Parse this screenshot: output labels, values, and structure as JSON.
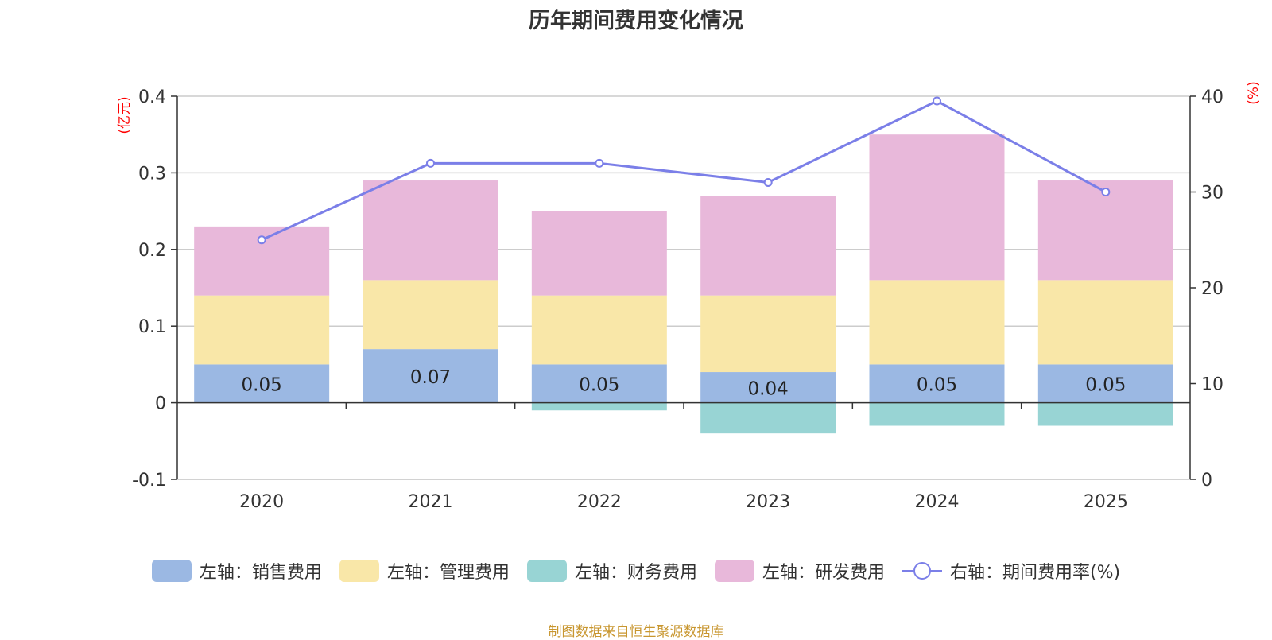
{
  "chart_data": {
    "type": "bar",
    "title": "历年期间费用变化情况",
    "categories": [
      "2020",
      "2021",
      "2022",
      "2023",
      "2024",
      "2025"
    ],
    "series": [
      {
        "name": "左轴：销售费用",
        "axis": "left",
        "color": "#9bb8e3",
        "values": [
          0.05,
          0.07,
          0.05,
          0.04,
          0.05,
          0.05
        ]
      },
      {
        "name": "左轴：管理费用",
        "axis": "left",
        "color": "#f9e7a8",
        "values": [
          0.09,
          0.09,
          0.09,
          0.1,
          0.11,
          0.11
        ]
      },
      {
        "name": "左轴：财务费用",
        "axis": "left",
        "color": "#98d4d4",
        "values": [
          0,
          0,
          -0.01,
          -0.04,
          -0.03,
          -0.03
        ]
      },
      {
        "name": "左轴：研发费用",
        "axis": "left",
        "color": "#e8b8da",
        "values": [
          0.09,
          0.13,
          0.11,
          0.13,
          0.19,
          0.13
        ]
      },
      {
        "name": "右轴：期间费用率(%)",
        "axis": "right",
        "type": "line",
        "color": "#7b7fe8",
        "values": [
          25,
          33,
          33,
          31,
          39.5,
          30
        ]
      }
    ],
    "bar_labels": [
      "0.05",
      "0.07",
      "0.05",
      "0.04",
      "0.05",
      "0.05"
    ],
    "y_left": {
      "label": "(亿元)",
      "ylim": [
        -0.1,
        0.4
      ],
      "ticks": [
        "-0.1",
        "0",
        "0.1",
        "0.2",
        "0.3",
        "0.4"
      ],
      "tick_values": [
        -0.1,
        0,
        0.1,
        0.2,
        0.3,
        0.4
      ]
    },
    "y_right": {
      "label": "(%)",
      "ylim": [
        0,
        40
      ],
      "ticks": [
        "0",
        "10",
        "20",
        "30",
        "40"
      ],
      "tick_values": [
        0,
        10,
        20,
        30,
        40
      ]
    },
    "grid": true,
    "legend_position": "bottom",
    "source": "制图数据来自恒生聚源数据库"
  }
}
